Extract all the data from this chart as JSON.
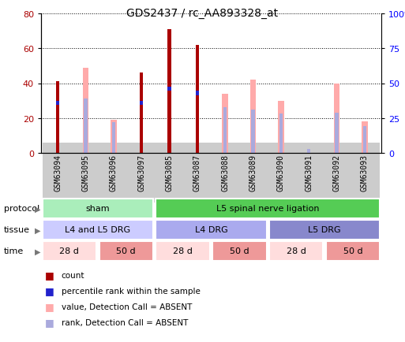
{
  "title": "GDS2437 / rc_AA893328_at",
  "samples": [
    "GSM63094",
    "GSM63095",
    "GSM63096",
    "GSM63097",
    "GSM63085",
    "GSM63087",
    "GSM63088",
    "GSM63089",
    "GSM63090",
    "GSM63091",
    "GSM63092",
    "GSM63093"
  ],
  "count": [
    41,
    0,
    0,
    46,
    71,
    62,
    0,
    0,
    0,
    0,
    0,
    0
  ],
  "percentile_rank": [
    36,
    0,
    0,
    36,
    46,
    43,
    0,
    0,
    0,
    0,
    0,
    0
  ],
  "value_absent": [
    0,
    49,
    19,
    0,
    0,
    0,
    34,
    42,
    30,
    0,
    40,
    18
  ],
  "rank_absent": [
    0,
    39,
    22,
    0,
    0,
    0,
    33,
    31,
    28,
    3,
    29,
    19
  ],
  "ylim_left": [
    0,
    80
  ],
  "ylim_right": [
    0,
    100
  ],
  "yticks_left": [
    0,
    20,
    40,
    60,
    80
  ],
  "yticks_right": [
    0,
    25,
    50,
    75,
    100
  ],
  "ytick_labels_right": [
    "0",
    "25",
    "50",
    "75",
    "100%"
  ],
  "color_count": "#aa0000",
  "color_rank": "#2222cc",
  "color_value_absent": "#ffaaaa",
  "color_rank_absent": "#aaaadd",
  "protocol_configs": [
    [
      0,
      4,
      "#aaeebb",
      "sham"
    ],
    [
      4,
      12,
      "#55cc55",
      "L5 spinal nerve ligation"
    ]
  ],
  "tissue_configs": [
    [
      0,
      4,
      "#ccccff",
      "L4 and L5 DRG"
    ],
    [
      4,
      8,
      "#aaaaee",
      "L4 DRG"
    ],
    [
      8,
      12,
      "#8888cc",
      "L5 DRG"
    ]
  ],
  "time_configs": [
    [
      0,
      2,
      "#ffdddd",
      "28 d"
    ],
    [
      2,
      4,
      "#ee9999",
      "50 d"
    ],
    [
      4,
      6,
      "#ffdddd",
      "28 d"
    ],
    [
      6,
      8,
      "#ee9999",
      "50 d"
    ],
    [
      8,
      10,
      "#ffdddd",
      "28 d"
    ],
    [
      10,
      12,
      "#ee9999",
      "50 d"
    ]
  ],
  "legend_items": [
    "count",
    "percentile rank within the sample",
    "value, Detection Call = ABSENT",
    "rank, Detection Call = ABSENT"
  ],
  "legend_colors": [
    "#aa0000",
    "#2222cc",
    "#ffaaaa",
    "#aaaadd"
  ]
}
